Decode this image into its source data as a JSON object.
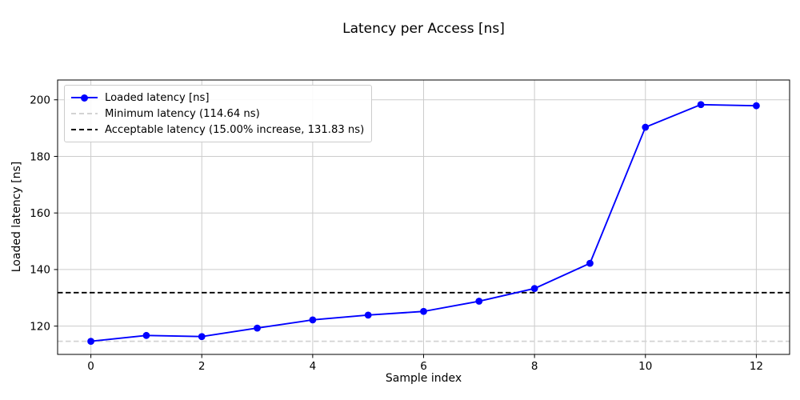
{
  "figure": {
    "title": "Latency per Access [ns]",
    "xlabel": "Sample index",
    "ylabel": "Loaded latency [ns]"
  },
  "chart_data": {
    "type": "line",
    "title": "Latency per Access [ns]",
    "xlabel": "Sample index",
    "ylabel": "Loaded latency [ns]",
    "x": [
      0,
      1,
      2,
      3,
      4,
      5,
      6,
      7,
      8,
      9,
      10,
      11,
      12
    ],
    "series": [
      {
        "key": "loaded-latency",
        "name": "Loaded latency [ns]",
        "type": "line+marker",
        "color": "#0000ff",
        "linestyle": "solid",
        "marker": "circle",
        "values": [
          114.64,
          116.7,
          116.3,
          119.3,
          122.2,
          123.9,
          125.2,
          128.8,
          133.3,
          142.2,
          190.3,
          198.3,
          197.9
        ]
      },
      {
        "key": "minimum-latency",
        "name": "Minimum latency (114.64 ns)",
        "type": "hline",
        "color": "#d3d3d3",
        "linestyle": "dashed",
        "value": 114.64
      },
      {
        "key": "acceptable-latency",
        "name": "Acceptable latency (15.00% increase, 131.83 ns)",
        "type": "hline",
        "color": "#000000",
        "linestyle": "dashed",
        "value": 131.83
      }
    ],
    "xticks": [
      0,
      2,
      4,
      6,
      8,
      10,
      12
    ],
    "yticks": [
      120,
      140,
      160,
      180,
      200
    ],
    "xlim": [
      -0.6,
      12.6
    ],
    "ylim": [
      110,
      207
    ],
    "grid": true,
    "grid_color": "#cccccc",
    "background_color": "#ffffff",
    "axes_color": "#000000",
    "legend_position": "upper left"
  }
}
